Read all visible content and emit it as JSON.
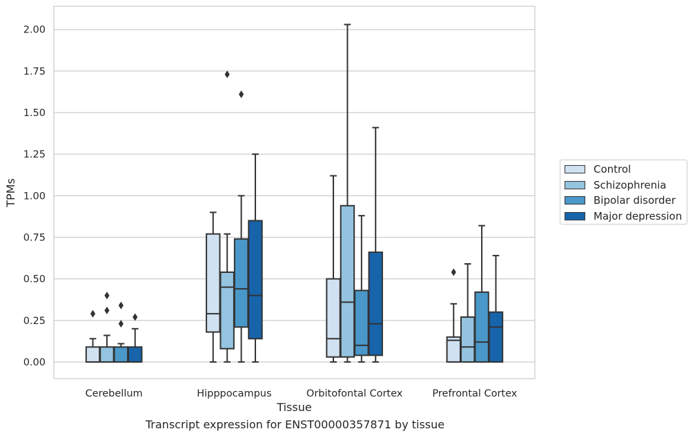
{
  "chart_data": {
    "type": "box",
    "xlabel": "Tissue",
    "ylabel": "TPMs",
    "ylim": [
      -0.1,
      2.14
    ],
    "yticks": [
      "0.00",
      "0.25",
      "0.50",
      "0.75",
      "1.00",
      "1.25",
      "1.50",
      "1.75",
      "2.00"
    ],
    "ytick_values": [
      0,
      0.25,
      0.5,
      0.75,
      1.0,
      1.25,
      1.5,
      1.75,
      2.0
    ],
    "grid": "horizontal",
    "legend_placement": "right",
    "categories": [
      "Cerebellum",
      "Hipppocampus",
      "Orbitofontal Cortex",
      "Prefrontal Cortex"
    ],
    "series": [
      {
        "name": "Control",
        "color": "#d0e1f2",
        "boxes": [
          {
            "whislo": 0.0,
            "q1": 0.0,
            "med": 0.0,
            "q3": 0.09,
            "whishi": 0.14,
            "fliers": [
              0.29
            ]
          },
          {
            "whislo": 0.0,
            "q1": 0.18,
            "med": 0.29,
            "q3": 0.77,
            "whishi": 0.9,
            "fliers": []
          },
          {
            "whislo": 0.0,
            "q1": 0.03,
            "med": 0.14,
            "q3": 0.5,
            "whishi": 1.12,
            "fliers": []
          },
          {
            "whislo": 0.0,
            "q1": 0.0,
            "med": 0.13,
            "q3": 0.15,
            "whishi": 0.35,
            "fliers": [
              0.54
            ]
          }
        ]
      },
      {
        "name": "Schizophrenia",
        "color": "#94c4df",
        "boxes": [
          {
            "whislo": 0.0,
            "q1": 0.0,
            "med": 0.0,
            "q3": 0.09,
            "whishi": 0.16,
            "fliers": [
              0.31,
              0.4
            ]
          },
          {
            "whislo": 0.0,
            "q1": 0.08,
            "med": 0.45,
            "q3": 0.54,
            "whishi": 0.77,
            "fliers": [
              1.73
            ]
          },
          {
            "whislo": 0.0,
            "q1": 0.03,
            "med": 0.36,
            "q3": 0.94,
            "whishi": 2.03,
            "fliers": []
          },
          {
            "whislo": 0.0,
            "q1": 0.0,
            "med": 0.09,
            "q3": 0.27,
            "whishi": 0.59,
            "fliers": []
          }
        ]
      },
      {
        "name": "Bipolar disorder",
        "color": "#4a98c9",
        "boxes": [
          {
            "whislo": 0.0,
            "q1": 0.0,
            "med": 0.0,
            "q3": 0.09,
            "whishi": 0.11,
            "fliers": [
              0.23,
              0.34
            ]
          },
          {
            "whislo": 0.0,
            "q1": 0.21,
            "med": 0.44,
            "q3": 0.74,
            "whishi": 1.0,
            "fliers": [
              1.61
            ]
          },
          {
            "whislo": 0.0,
            "q1": 0.04,
            "med": 0.1,
            "q3": 0.43,
            "whishi": 0.88,
            "fliers": []
          },
          {
            "whislo": 0.0,
            "q1": 0.0,
            "med": 0.12,
            "q3": 0.42,
            "whishi": 0.82,
            "fliers": []
          }
        ]
      },
      {
        "name": "Major depression",
        "color": "#1764ab",
        "boxes": [
          {
            "whislo": 0.0,
            "q1": 0.0,
            "med": 0.0,
            "q3": 0.09,
            "whishi": 0.2,
            "fliers": [
              0.27
            ]
          },
          {
            "whislo": 0.0,
            "q1": 0.14,
            "med": 0.4,
            "q3": 0.85,
            "whishi": 1.25,
            "fliers": []
          },
          {
            "whislo": 0.0,
            "q1": 0.04,
            "med": 0.23,
            "q3": 0.66,
            "whishi": 1.41,
            "fliers": []
          },
          {
            "whislo": 0.0,
            "q1": 0.0,
            "med": 0.21,
            "q3": 0.3,
            "whishi": 0.64,
            "fliers": []
          }
        ]
      }
    ],
    "caption": "Transcript expression for ENST00000357871 by tissue"
  }
}
